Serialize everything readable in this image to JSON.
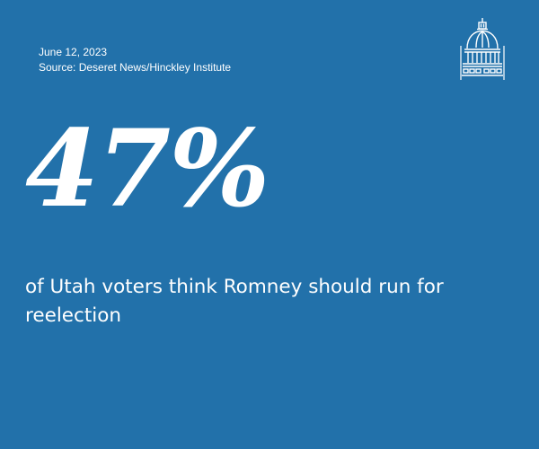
{
  "card": {
    "date": "June 12, 2023",
    "source": "Source: Deseret News/Hinckley Institute",
    "stat": "47%",
    "caption": "of Utah voters think Romney should run for reelection",
    "logo_icon": "capitol-dome-icon",
    "colors": {
      "background": "#2271aa",
      "text": "#ffffff"
    }
  }
}
